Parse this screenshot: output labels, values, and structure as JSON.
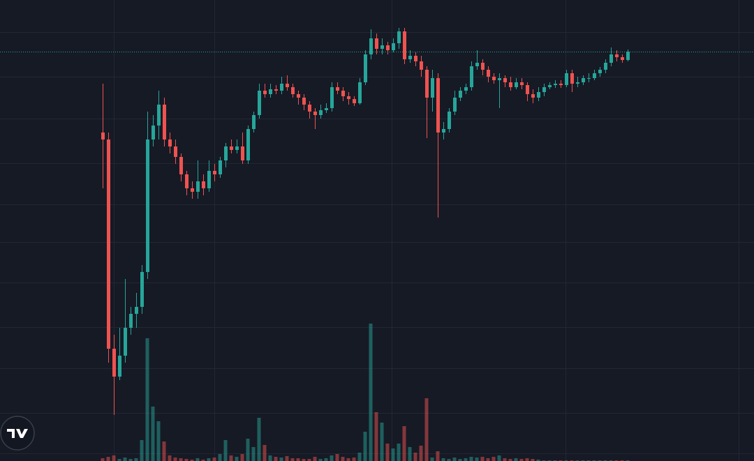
{
  "chart_data": {
    "type": "candlestick",
    "up_color": "#26a69a",
    "down_color": "#ef5350",
    "ylim": [
      0,
      661
    ],
    "y2lim": [
      0,
      661
    ],
    "open": [
      471,
      461,
      161,
      121,
      151,
      191,
      211,
      221,
      271,
      461,
      481,
      511,
      461,
      451,
      436,
      411,
      391,
      386,
      401,
      391,
      416,
      411,
      431,
      451,
      446,
      451,
      431,
      476,
      496,
      531,
      526,
      533,
      531,
      541,
      536,
      526,
      521,
      511,
      501,
      496,
      503,
      506,
      536,
      531,
      523,
      519,
      513,
      543,
      583,
      606,
      591,
      596,
      589,
      599,
      616,
      576,
      581,
      573,
      561,
      521,
      549,
      471,
      476,
      501,
      521,
      531,
      536,
      566,
      571,
      561,
      551,
      546,
      549,
      543,
      536,
      543,
      539,
      526,
      521,
      529,
      536,
      539,
      541,
      539,
      556,
      541,
      543,
      549,
      549,
      556,
      561,
      571,
      583,
      579,
      575
    ],
    "high": [
      541,
      471,
      181,
      191,
      261,
      221,
      241,
      281,
      501,
      496,
      531,
      521,
      471,
      461,
      441,
      416,
      401,
      431,
      411,
      431,
      426,
      436,
      456,
      461,
      461,
      471,
      481,
      501,
      541,
      541,
      541,
      539,
      551,
      553,
      541,
      531,
      526,
      516,
      506,
      511,
      513,
      543,
      543,
      536,
      529,
      523,
      549,
      589,
      619,
      613,
      606,
      601,
      606,
      621,
      621,
      589,
      586,
      581,
      566,
      561,
      556,
      486,
      506,
      531,
      536,
      541,
      573,
      589,
      576,
      566,
      556,
      556,
      553,
      551,
      549,
      549,
      543,
      533,
      536,
      541,
      543,
      546,
      546,
      561,
      561,
      551,
      553,
      556,
      561,
      565,
      576,
      593,
      589,
      583,
      590
    ],
    "low": [
      391,
      141,
      66,
      116,
      141,
      181,
      191,
      211,
      261,
      451,
      461,
      451,
      441,
      426,
      401,
      381,
      376,
      376,
      381,
      386,
      401,
      406,
      421,
      441,
      441,
      426,
      426,
      471,
      491,
      521,
      521,
      526,
      526,
      531,
      521,
      511,
      503,
      491,
      476,
      491,
      499,
      501,
      526,
      516,
      511,
      509,
      511,
      539,
      576,
      583,
      583,
      583,
      586,
      591,
      569,
      571,
      566,
      551,
      463,
      501,
      349,
      461,
      471,
      496,
      516,
      526,
      531,
      561,
      553,
      543,
      541,
      506,
      536,
      531,
      533,
      533,
      516,
      513,
      516,
      523,
      533,
      535,
      535,
      536,
      529,
      536,
      539,
      543,
      546,
      551,
      556,
      566,
      573,
      571,
      573
    ],
    "close": [
      461,
      161,
      121,
      151,
      191,
      211,
      221,
      271,
      461,
      481,
      511,
      461,
      451,
      436,
      411,
      391,
      386,
      401,
      391,
      416,
      411,
      431,
      451,
      446,
      451,
      431,
      476,
      496,
      531,
      526,
      533,
      531,
      541,
      536,
      526,
      521,
      511,
      501,
      496,
      503,
      506,
      536,
      531,
      523,
      519,
      513,
      543,
      583,
      606,
      591,
      596,
      589,
      599,
      616,
      576,
      581,
      573,
      561,
      521,
      549,
      471,
      476,
      501,
      521,
      531,
      536,
      566,
      571,
      561,
      551,
      546,
      549,
      543,
      536,
      543,
      539,
      526,
      521,
      529,
      536,
      539,
      541,
      539,
      556,
      541,
      543,
      549,
      549,
      556,
      561,
      571,
      583,
      579,
      575,
      587
    ],
    "volume": [
      4,
      6,
      8,
      3,
      5,
      3,
      4,
      30,
      176,
      78,
      57,
      28,
      8,
      5,
      4,
      3,
      2,
      4,
      2,
      4,
      5,
      10,
      30,
      8,
      6,
      10,
      32,
      20,
      62,
      23,
      8,
      6,
      5,
      7,
      4,
      4,
      3,
      3,
      6,
      3,
      4,
      8,
      10,
      6,
      4,
      5,
      12,
      42,
      197,
      70,
      55,
      25,
      18,
      25,
      50,
      20,
      12,
      22,
      90,
      5,
      14,
      4,
      3,
      5,
      3,
      4,
      6,
      5,
      6,
      4,
      6,
      8,
      4,
      3,
      4,
      3,
      4,
      3,
      2,
      1,
      1,
      1,
      1,
      1,
      1,
      1,
      1,
      1,
      1,
      1,
      1,
      1,
      1,
      1,
      1
    ]
  }
}
